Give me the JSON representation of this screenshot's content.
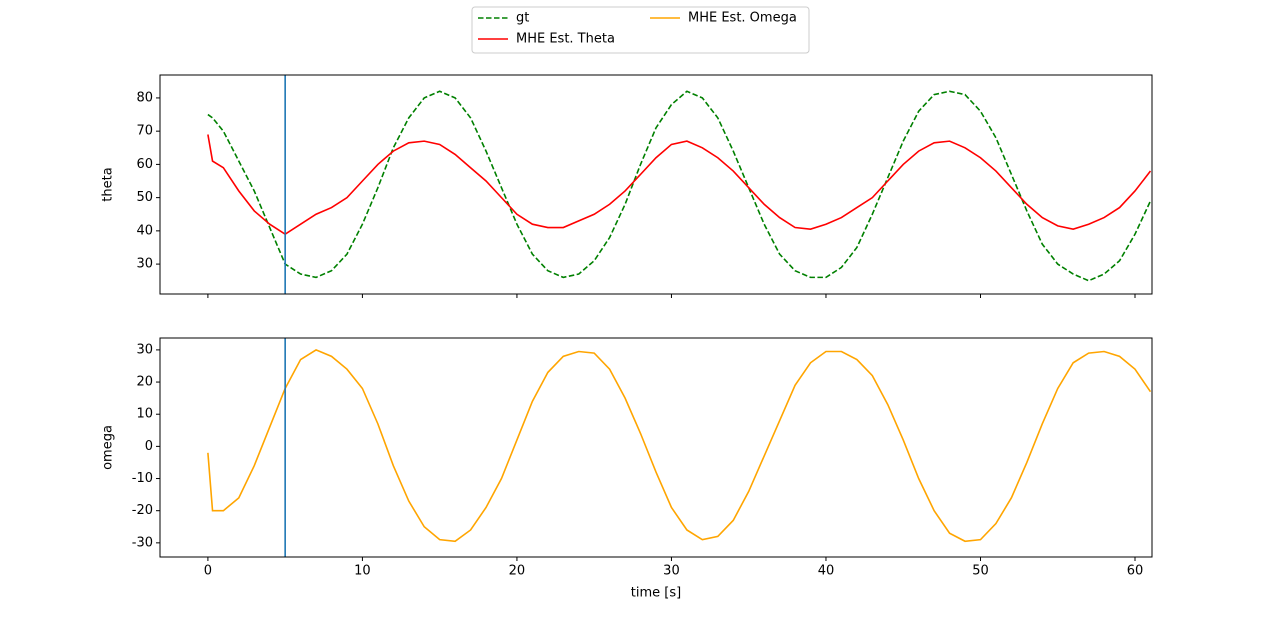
{
  "chart_data": [
    {
      "type": "line",
      "ylabel": "theta",
      "xlim": [
        -3.1,
        61.1
      ],
      "ylim": [
        21,
        86.9
      ],
      "xticks": [
        0,
        10,
        20,
        30,
        40,
        50,
        60
      ],
      "yticks": [
        30,
        40,
        50,
        60,
        70,
        80
      ],
      "vline_x": 5,
      "vline_color": "#1f77b4",
      "x": [
        0,
        0.3,
        1,
        2,
        3,
        4,
        5,
        6,
        7,
        8,
        9,
        10,
        11,
        12,
        13,
        14,
        15,
        16,
        17,
        18,
        19,
        20,
        21,
        22,
        23,
        24,
        25,
        26,
        27,
        28,
        29,
        30,
        31,
        32,
        33,
        34,
        35,
        36,
        37,
        38,
        39,
        40,
        41,
        42,
        43,
        44,
        45,
        46,
        47,
        48,
        49,
        50,
        51,
        52,
        53,
        54,
        55,
        56,
        57,
        58,
        59,
        60,
        61
      ],
      "series": [
        {
          "name": "gt",
          "color": "#008000",
          "dash": "dashed",
          "values": [
            75,
            74,
            70,
            61,
            52,
            41,
            30,
            27,
            26,
            28,
            33,
            42,
            53,
            65,
            74,
            80,
            82,
            80,
            74,
            64,
            53,
            42,
            33,
            28,
            26,
            27,
            31,
            38,
            48,
            60,
            71,
            78,
            82,
            80,
            74,
            64,
            53,
            42,
            33,
            28,
            26,
            26,
            29,
            35,
            45,
            56,
            67,
            76,
            81,
            82,
            81,
            76,
            68,
            57,
            46,
            36,
            30,
            27,
            25,
            27,
            31,
            39,
            49
          ]
        },
        {
          "name": "MHE Est. Theta",
          "color": "#ff0000",
          "dash": "solid",
          "values": [
            69,
            61,
            59,
            52,
            46,
            42,
            39,
            42,
            45,
            47,
            50,
            55,
            60,
            64,
            66.5,
            67,
            66,
            63,
            59,
            55,
            50,
            45,
            42,
            41,
            41,
            43,
            45,
            48,
            52,
            57,
            62,
            66,
            67,
            65,
            62,
            58,
            53,
            48,
            44,
            41,
            40.5,
            42,
            44,
            47,
            50,
            55,
            60,
            64,
            66.5,
            67,
            65,
            62,
            58,
            53,
            48,
            44,
            41.5,
            40.5,
            42,
            44,
            47,
            52,
            58
          ]
        }
      ]
    },
    {
      "type": "line",
      "ylabel": "omega",
      "xlabel": "time [s]",
      "xlim": [
        -3.1,
        61.1
      ],
      "ylim": [
        -34.4,
        33.7
      ],
      "xticks": [
        0,
        10,
        20,
        30,
        40,
        50,
        60
      ],
      "yticks": [
        -30,
        -20,
        -10,
        0,
        10,
        20,
        30
      ],
      "vline_x": 5,
      "vline_color": "#1f77b4",
      "x": [
        0,
        0.3,
        1,
        2,
        3,
        4,
        5,
        6,
        7,
        8,
        9,
        10,
        11,
        12,
        13,
        14,
        15,
        16,
        17,
        18,
        19,
        20,
        21,
        22,
        23,
        24,
        25,
        26,
        27,
        28,
        29,
        30,
        31,
        32,
        33,
        34,
        35,
        36,
        37,
        38,
        39,
        40,
        41,
        42,
        43,
        44,
        45,
        46,
        47,
        48,
        49,
        50,
        51,
        52,
        53,
        54,
        55,
        56,
        57,
        58,
        59,
        60,
        61
      ],
      "series": [
        {
          "name": "MHE Est. Omega",
          "color": "#ffa500",
          "dash": "solid",
          "values": [
            -2,
            -20,
            -20,
            -16,
            -6,
            6,
            18,
            27,
            30,
            28,
            24,
            18,
            7,
            -6,
            -17,
            -25,
            -29,
            -29.5,
            -26,
            -19,
            -10,
            2,
            14,
            23,
            28,
            29.5,
            29,
            24,
            15,
            4,
            -8,
            -19,
            -26,
            -29,
            -28,
            -23,
            -14,
            -3,
            8,
            19,
            26,
            29.5,
            29.5,
            27,
            22,
            13,
            2,
            -10,
            -20,
            -27,
            -29.5,
            -29,
            -24,
            -16,
            -5,
            7,
            18,
            26,
            29,
            29.5,
            28,
            24,
            17
          ]
        }
      ]
    }
  ]
}
